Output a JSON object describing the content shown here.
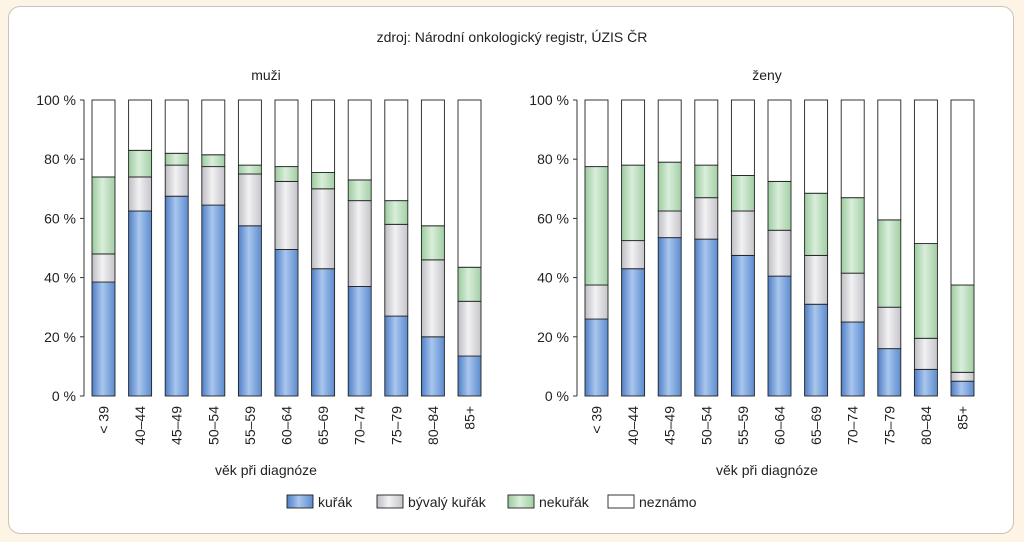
{
  "source_note": "zdroj: Národní onkologický registr, ÚZIS ČR",
  "legend": [
    {
      "label": "kuřák",
      "color": "#6f9fdc"
    },
    {
      "label": "bývalý kuřák",
      "color": "#d9d9dd"
    },
    {
      "label": "nekuřák",
      "color": "#b7dcb8"
    },
    {
      "label": "neznámo",
      "color": "#ffffff"
    }
  ],
  "chart_data": [
    {
      "type": "bar",
      "stacked": true,
      "title": "muži",
      "xlabel": "věk při diagnóze",
      "ylabel": "",
      "ylim": [
        0,
        100
      ],
      "yticks": [
        "0 %",
        "20 %",
        "40 %",
        "60 %",
        "80 %",
        "100 %"
      ],
      "categories": [
        "< 39",
        "40–44",
        "45–49",
        "50–54",
        "55–59",
        "60–64",
        "65–69",
        "70–74",
        "75–79",
        "80–84",
        "85+"
      ],
      "series": [
        {
          "name": "kuřák",
          "values": [
            38.5,
            62.5,
            67.5,
            64.5,
            57.5,
            49.5,
            43,
            37,
            27,
            20,
            13.5
          ]
        },
        {
          "name": "bývalý kuřák",
          "values": [
            9.5,
            11.5,
            10.5,
            13,
            17.5,
            23,
            27,
            29,
            31,
            26,
            18.5
          ]
        },
        {
          "name": "nekuřák",
          "values": [
            26,
            9,
            4,
            4,
            3,
            5,
            5.5,
            7,
            8,
            11.5,
            11.5
          ]
        },
        {
          "name": "neznámo",
          "values": [
            26,
            17,
            18,
            18.5,
            22,
            22.5,
            24.5,
            27,
            34,
            42.5,
            56.5
          ]
        }
      ]
    },
    {
      "type": "bar",
      "stacked": true,
      "title": "ženy",
      "xlabel": "věk při diagnóze",
      "ylabel": "",
      "ylim": [
        0,
        100
      ],
      "yticks": [
        "0 %",
        "20 %",
        "40 %",
        "60 %",
        "80 %",
        "100 %"
      ],
      "categories": [
        "< 39",
        "40–44",
        "45–49",
        "50–54",
        "55–59",
        "60–64",
        "65–69",
        "70–74",
        "75–79",
        "80–84",
        "85+"
      ],
      "series": [
        {
          "name": "kuřák",
          "values": [
            26,
            43,
            53.5,
            53,
            47.5,
            40.5,
            31,
            25,
            16,
            9,
            5
          ]
        },
        {
          "name": "bývalý kuřák",
          "values": [
            11.5,
            9.5,
            9,
            14,
            15,
            15.5,
            16.5,
            16.5,
            14,
            10.5,
            3
          ]
        },
        {
          "name": "nekuřák",
          "values": [
            40,
            25.5,
            16.5,
            11,
            12,
            16.5,
            21,
            25.5,
            29.5,
            32,
            29.5
          ]
        },
        {
          "name": "neznámo",
          "values": [
            22.5,
            22,
            21,
            22,
            25.5,
            27.5,
            31.5,
            33,
            40.5,
            48.5,
            62.5
          ]
        }
      ]
    }
  ]
}
